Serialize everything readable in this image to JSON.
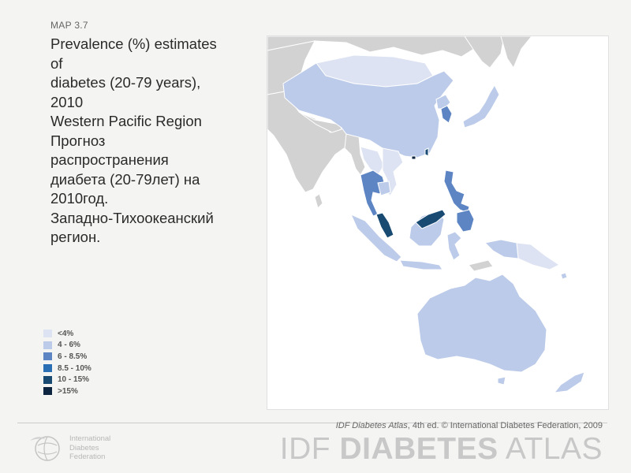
{
  "map_number": "MAP 3.7",
  "title_lines": [
    "Prevalence (%) estimates",
    "of",
    "diabetes (20-79 years),",
    "2010",
    "Western Pacific Region",
    "Прогноз",
    "распространения",
    "диабета (20-79лет) на",
    "2010год.",
    "Западно-Тихоокеанский",
    "регион."
  ],
  "legend": [
    {
      "label": "<4%",
      "color": "#dde3f2"
    },
    {
      "label": "4 - 6%",
      "color": "#bccbe9"
    },
    {
      "label": "6 - 8.5%",
      "color": "#5d85c3"
    },
    {
      "label": "8.5 - 10%",
      "color": "#2a6fb3"
    },
    {
      "label": "10 - 15%",
      "color": "#184a72"
    },
    {
      "label": ">15%",
      "color": "#0d2541"
    }
  ],
  "colors": {
    "background": "#f4f4f2",
    "outside_region": "#d2d2d2",
    "sea": "#ffffff"
  },
  "footer": {
    "credit_italic": "IDF Diabetes Atlas",
    "credit_rest": ", 4th ed.  © International Diabetes Federation, 2009",
    "brand_light": "IDF ",
    "brand_bold": "DIABETES",
    "brand_tail": " ATLAS",
    "logo_line1": "International",
    "logo_line2": "Diabetes",
    "logo_line3": "Federation"
  }
}
